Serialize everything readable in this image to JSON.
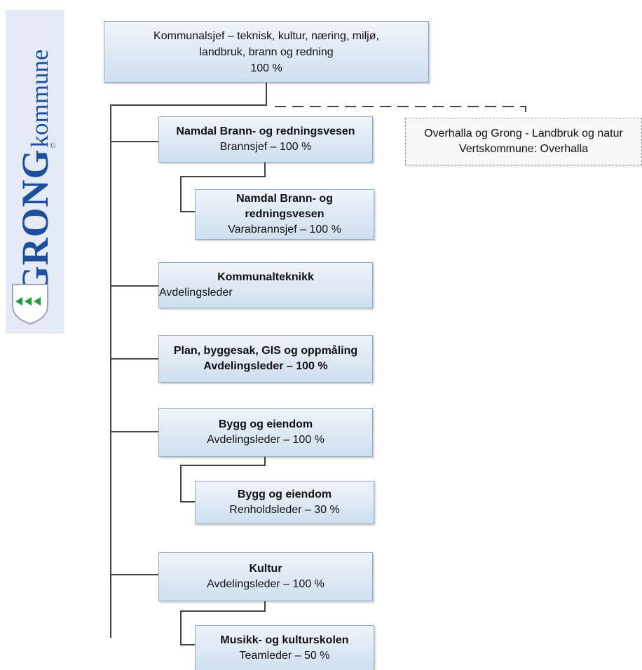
{
  "logo": {
    "wordmark": "GRONG",
    "suffix": "kommune",
    "copyright": "©"
  },
  "top": {
    "line1": "Kommunalsjef – teknisk, kultur, næring, miljø,",
    "line2": "landbruk, brann og redning",
    "line3": "100 %"
  },
  "external": {
    "line1": "Overhalla og Grong - Landbruk og natur",
    "line2": "Vertskommune: Overhalla"
  },
  "units": [
    {
      "title": "Namdal Brann- og redningsvesen",
      "sub": "Brannsjef – 100 %"
    },
    {
      "title": "Namdal Brann- og redningsvesen",
      "sub": "Varabrannsjef – 100 %"
    },
    {
      "title": "Kommunalteknikk",
      "sub": "Avdelingsleder"
    },
    {
      "title": "Plan, byggesak, GIS og oppmåling",
      "sub": "Avdelingsleder – 100 %"
    },
    {
      "title": "Bygg og eiendom",
      "sub": "Avdelingsleder – 100 %"
    },
    {
      "title": "Bygg og eiendom",
      "sub": "Renholdsleder – 30 %"
    },
    {
      "title": "Kultur",
      "sub": "Avdelingsleder – 100 %"
    },
    {
      "title": "Musikk- og kulturskolen",
      "sub": "Teamleder – 50 %"
    }
  ],
  "colors": {
    "box_fill_top": "#eef4fa",
    "box_fill_bottom": "#cfdfee",
    "box_border": "#8fa9c4",
    "logo_blue": "#1d4f9c",
    "logo_green": "#1f9a3c"
  }
}
